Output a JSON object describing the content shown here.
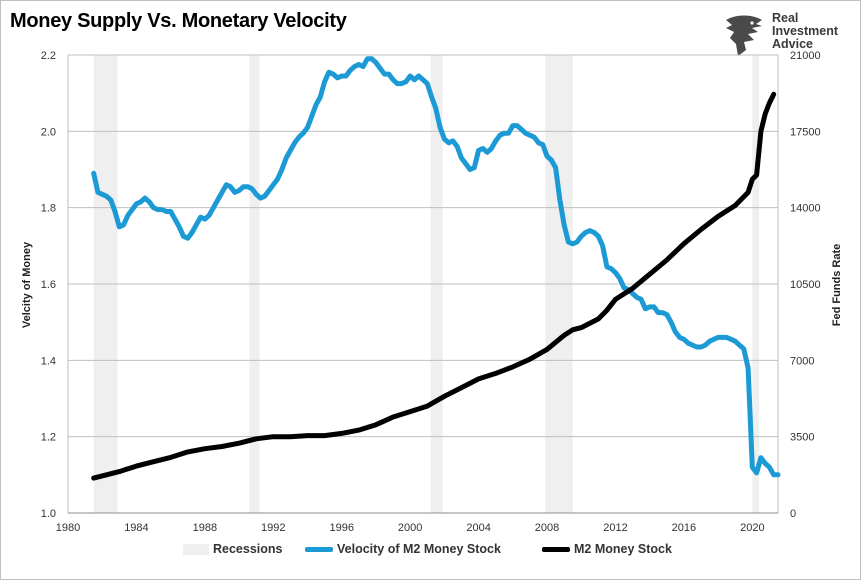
{
  "title": "Money Supply Vs. Monetary Velocity",
  "logo": {
    "line1": "Real",
    "line2": "Investment",
    "line3": "Advice",
    "icon": "eagle-head-logo"
  },
  "colors": {
    "velocity": "#1b9ad6",
    "m2": "#000000",
    "recession": "#efefef",
    "grid": "#bfbfbf"
  },
  "chart_data": {
    "type": "line",
    "title": "Money Supply Vs. Monetary Velocity",
    "xlim": [
      1980,
      2021.5
    ],
    "x_ticks": [
      "1980",
      "1984",
      "1988",
      "1992",
      "1996",
      "2000",
      "2004",
      "2008",
      "2012",
      "2016",
      "2020"
    ],
    "x_tick_values": [
      1980,
      1984,
      1988,
      1992,
      1996,
      2000,
      2004,
      2008,
      2012,
      2016,
      2020
    ],
    "ylabel_left": "Velcity of Money",
    "ylim_left": [
      1.0,
      2.2
    ],
    "y_ticks_left": [
      "1.0",
      "1.2",
      "1.4",
      "1.6",
      "1.8",
      "2.0",
      "2.2"
    ],
    "ylabel_right": "Fed Funds Rate",
    "ylim_right": [
      0,
      21000
    ],
    "y_ticks_right": [
      "0",
      "3500",
      "7000",
      "10500",
      "14000",
      "17500",
      "21000"
    ],
    "grid": "horizontal",
    "legend_position": "bottom",
    "recessions": [
      [
        1981.5,
        1982.9
      ],
      [
        1990.6,
        1991.2
      ],
      [
        2001.2,
        2001.9
      ],
      [
        2007.9,
        2009.5
      ],
      [
        2020.0,
        2020.4
      ]
    ],
    "series": [
      {
        "name": "Velocity of M2 Money Stock",
        "axis": "left",
        "points": [
          [
            1981.5,
            1.89
          ],
          [
            1981.75,
            1.84
          ],
          [
            1982.0,
            1.835
          ],
          [
            1982.25,
            1.83
          ],
          [
            1982.5,
            1.82
          ],
          [
            1982.75,
            1.79
          ],
          [
            1983.0,
            1.75
          ],
          [
            1983.25,
            1.755
          ],
          [
            1983.5,
            1.78
          ],
          [
            1983.75,
            1.795
          ],
          [
            1984.0,
            1.81
          ],
          [
            1984.25,
            1.815
          ],
          [
            1984.5,
            1.825
          ],
          [
            1984.75,
            1.815
          ],
          [
            1985.0,
            1.8
          ],
          [
            1985.25,
            1.795
          ],
          [
            1985.5,
            1.795
          ],
          [
            1985.75,
            1.79
          ],
          [
            1986.0,
            1.79
          ],
          [
            1986.25,
            1.77
          ],
          [
            1986.5,
            1.75
          ],
          [
            1986.75,
            1.725
          ],
          [
            1987.0,
            1.72
          ],
          [
            1987.25,
            1.735
          ],
          [
            1987.5,
            1.755
          ],
          [
            1987.75,
            1.775
          ],
          [
            1988.0,
            1.77
          ],
          [
            1988.25,
            1.78
          ],
          [
            1988.5,
            1.8
          ],
          [
            1988.75,
            1.82
          ],
          [
            1989.0,
            1.84
          ],
          [
            1989.25,
            1.86
          ],
          [
            1989.5,
            1.855
          ],
          [
            1989.75,
            1.84
          ],
          [
            1990.0,
            1.845
          ],
          [
            1990.25,
            1.855
          ],
          [
            1990.5,
            1.855
          ],
          [
            1990.75,
            1.85
          ],
          [
            1991.0,
            1.835
          ],
          [
            1991.25,
            1.825
          ],
          [
            1991.5,
            1.83
          ],
          [
            1991.75,
            1.845
          ],
          [
            1992.0,
            1.86
          ],
          [
            1992.25,
            1.875
          ],
          [
            1992.5,
            1.9
          ],
          [
            1992.75,
            1.93
          ],
          [
            1993.0,
            1.95
          ],
          [
            1993.25,
            1.97
          ],
          [
            1993.5,
            1.985
          ],
          [
            1993.75,
            1.995
          ],
          [
            1994.0,
            2.01
          ],
          [
            1994.25,
            2.04
          ],
          [
            1994.5,
            2.07
          ],
          [
            1994.75,
            2.09
          ],
          [
            1995.0,
            2.13
          ],
          [
            1995.25,
            2.155
          ],
          [
            1995.5,
            2.15
          ],
          [
            1995.75,
            2.14
          ],
          [
            1996.0,
            2.145
          ],
          [
            1996.25,
            2.145
          ],
          [
            1996.5,
            2.16
          ],
          [
            1996.75,
            2.17
          ],
          [
            1997.0,
            2.175
          ],
          [
            1997.25,
            2.17
          ],
          [
            1997.5,
            2.19
          ],
          [
            1997.75,
            2.19
          ],
          [
            1998.0,
            2.18
          ],
          [
            1998.25,
            2.165
          ],
          [
            1998.5,
            2.15
          ],
          [
            1998.75,
            2.15
          ],
          [
            1999.0,
            2.135
          ],
          [
            1999.25,
            2.125
          ],
          [
            1999.5,
            2.125
          ],
          [
            1999.75,
            2.13
          ],
          [
            2000.0,
            2.145
          ],
          [
            2000.25,
            2.135
          ],
          [
            2000.5,
            2.145
          ],
          [
            2000.75,
            2.135
          ],
          [
            2001.0,
            2.125
          ],
          [
            2001.25,
            2.09
          ],
          [
            2001.5,
            2.06
          ],
          [
            2001.75,
            2.01
          ],
          [
            2002.0,
            1.98
          ],
          [
            2002.25,
            1.97
          ],
          [
            2002.5,
            1.975
          ],
          [
            2002.75,
            1.96
          ],
          [
            2003.0,
            1.93
          ],
          [
            2003.25,
            1.915
          ],
          [
            2003.5,
            1.9
          ],
          [
            2003.75,
            1.905
          ],
          [
            2004.0,
            1.95
          ],
          [
            2004.25,
            1.955
          ],
          [
            2004.5,
            1.945
          ],
          [
            2004.75,
            1.955
          ],
          [
            2005.0,
            1.975
          ],
          [
            2005.25,
            1.99
          ],
          [
            2005.5,
            1.995
          ],
          [
            2005.75,
            1.995
          ],
          [
            2006.0,
            2.015
          ],
          [
            2006.25,
            2.015
          ],
          [
            2006.5,
            2.005
          ],
          [
            2006.75,
            1.995
          ],
          [
            2007.0,
            1.99
          ],
          [
            2007.25,
            1.985
          ],
          [
            2007.5,
            1.97
          ],
          [
            2007.75,
            1.965
          ],
          [
            2008.0,
            1.935
          ],
          [
            2008.25,
            1.925
          ],
          [
            2008.5,
            1.905
          ],
          [
            2008.75,
            1.82
          ],
          [
            2009.0,
            1.755
          ],
          [
            2009.25,
            1.71
          ],
          [
            2009.5,
            1.705
          ],
          [
            2009.75,
            1.71
          ],
          [
            2010.0,
            1.725
          ],
          [
            2010.25,
            1.735
          ],
          [
            2010.5,
            1.74
          ],
          [
            2010.75,
            1.735
          ],
          [
            2011.0,
            1.725
          ],
          [
            2011.25,
            1.7
          ],
          [
            2011.5,
            1.645
          ],
          [
            2011.75,
            1.64
          ],
          [
            2012.0,
            1.63
          ],
          [
            2012.25,
            1.615
          ],
          [
            2012.5,
            1.59
          ],
          [
            2012.75,
            1.585
          ],
          [
            2013.0,
            1.575
          ],
          [
            2013.25,
            1.565
          ],
          [
            2013.5,
            1.56
          ],
          [
            2013.75,
            1.535
          ],
          [
            2014.0,
            1.54
          ],
          [
            2014.25,
            1.54
          ],
          [
            2014.5,
            1.525
          ],
          [
            2014.75,
            1.525
          ],
          [
            2015.0,
            1.52
          ],
          [
            2015.25,
            1.5
          ],
          [
            2015.5,
            1.475
          ],
          [
            2015.75,
            1.46
          ],
          [
            2016.0,
            1.455
          ],
          [
            2016.25,
            1.445
          ],
          [
            2016.5,
            1.44
          ],
          [
            2016.75,
            1.435
          ],
          [
            2017.0,
            1.435
          ],
          [
            2017.25,
            1.44
          ],
          [
            2017.5,
            1.45
          ],
          [
            2017.75,
            1.455
          ],
          [
            2018.0,
            1.46
          ],
          [
            2018.25,
            1.46
          ],
          [
            2018.5,
            1.46
          ],
          [
            2018.75,
            1.455
          ],
          [
            2019.0,
            1.45
          ],
          [
            2019.25,
            1.44
          ],
          [
            2019.5,
            1.43
          ],
          [
            2019.75,
            1.38
          ],
          [
            2020.0,
            1.12
          ],
          [
            2020.25,
            1.105
          ],
          [
            2020.5,
            1.145
          ],
          [
            2020.75,
            1.13
          ],
          [
            2021.0,
            1.12
          ],
          [
            2021.25,
            1.1
          ],
          [
            2021.5,
            1.1
          ]
        ]
      },
      {
        "name": "M2 Money Stock",
        "axis": "right",
        "points": [
          [
            1981.5,
            1600
          ],
          [
            1982.0,
            1700
          ],
          [
            1983.0,
            1900
          ],
          [
            1984.0,
            2150
          ],
          [
            1985.0,
            2350
          ],
          [
            1986.0,
            2550
          ],
          [
            1987.0,
            2800
          ],
          [
            1988.0,
            2950
          ],
          [
            1989.0,
            3050
          ],
          [
            1990.0,
            3200
          ],
          [
            1991.0,
            3400
          ],
          [
            1992.0,
            3500
          ],
          [
            1993.0,
            3500
          ],
          [
            1994.0,
            3550
          ],
          [
            1995.0,
            3550
          ],
          [
            1996.0,
            3650
          ],
          [
            1997.0,
            3800
          ],
          [
            1998.0,
            4050
          ],
          [
            1999.0,
            4400
          ],
          [
            2000.0,
            4650
          ],
          [
            2001.0,
            4900
          ],
          [
            2002.0,
            5350
          ],
          [
            2003.0,
            5750
          ],
          [
            2004.0,
            6150
          ],
          [
            2005.0,
            6400
          ],
          [
            2006.0,
            6700
          ],
          [
            2007.0,
            7050
          ],
          [
            2008.0,
            7500
          ],
          [
            2009.0,
            8150
          ],
          [
            2009.5,
            8400
          ],
          [
            2010.0,
            8500
          ],
          [
            2011.0,
            8900
          ],
          [
            2011.5,
            9300
          ],
          [
            2012.0,
            9800
          ],
          [
            2013.0,
            10300
          ],
          [
            2014.0,
            10950
          ],
          [
            2015.0,
            11600
          ],
          [
            2016.0,
            12350
          ],
          [
            2017.0,
            13000
          ],
          [
            2018.0,
            13600
          ],
          [
            2019.0,
            14100
          ],
          [
            2019.75,
            14700
          ],
          [
            2020.0,
            15300
          ],
          [
            2020.25,
            15500
          ],
          [
            2020.5,
            17500
          ],
          [
            2020.75,
            18300
          ],
          [
            2021.0,
            18800
          ],
          [
            2021.25,
            19200
          ]
        ]
      }
    ]
  },
  "legend": {
    "recessions": "Recessions",
    "velocity": "Velocity of M2 Money Stock",
    "m2": "M2 Money Stock"
  }
}
